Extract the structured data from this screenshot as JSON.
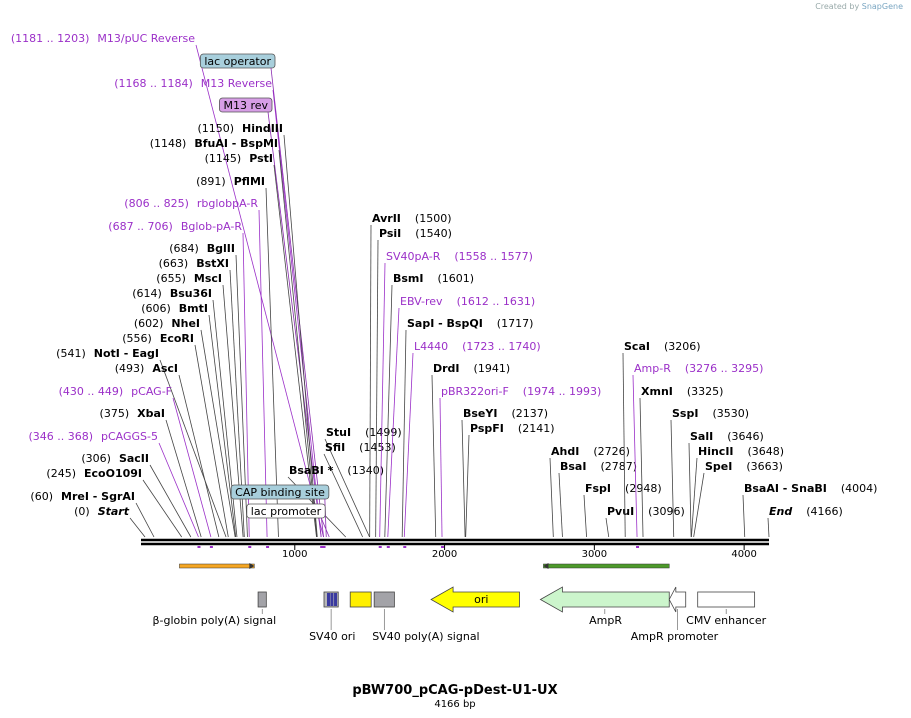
{
  "credit": {
    "prefix": "Created by",
    "brand": "SnapGene"
  },
  "map": {
    "title": "pBW700_pCAG-pDest-U1-UX",
    "subtitle": "4166 bp",
    "total_bp": 4166,
    "ticks": [
      1000,
      2000,
      3000,
      4000
    ]
  },
  "colors": {
    "primer": "#9b30c8",
    "site": "#000000",
    "pos": "#000000"
  },
  "labels": [
    {
      "text": "M13/pUC Reverse",
      "range": "(1181 .. 1203)",
      "kind": "primer",
      "bp": 1192
    },
    {
      "text": "lac operator",
      "kind": "box",
      "fill": "#a8cfdc",
      "bp": 1192
    },
    {
      "text": "M13 Reverse",
      "range": "(1168 .. 1184)",
      "kind": "primer",
      "bp": 1176
    },
    {
      "text": "M13 rev",
      "kind": "box",
      "fill": "#d79ee6",
      "bp": 1176
    },
    {
      "text": "HindIII",
      "pos": "(1150)",
      "kind": "site",
      "bp": 1150
    },
    {
      "text": "BfuAI  -  BspMI",
      "pos": "(1148)",
      "kind": "site",
      "bp": 1148
    },
    {
      "text": "PstI",
      "pos": "(1145)",
      "kind": "site",
      "bp": 1145
    },
    {
      "text": "PflMI",
      "pos": "(891)",
      "kind": "site",
      "bp": 891
    },
    {
      "text": "rbglobpA-R",
      "range": "(806 .. 825)",
      "kind": "primer",
      "bp": 815
    },
    {
      "text": "Bglob-pA-R",
      "range": "(687 .. 706)",
      "kind": "primer",
      "bp": 696
    },
    {
      "text": "BglII",
      "pos": "(684)",
      "kind": "site",
      "bp": 684
    },
    {
      "text": "BstXI",
      "pos": "(663)",
      "kind": "site",
      "bp": 663
    },
    {
      "text": "MscI",
      "pos": "(655)",
      "kind": "site",
      "bp": 655
    },
    {
      "text": "Bsu36I",
      "pos": "(614)",
      "kind": "site",
      "bp": 614
    },
    {
      "text": "BmtI",
      "pos": "(606)",
      "kind": "site",
      "bp": 606
    },
    {
      "text": "NheI",
      "pos": "(602)",
      "kind": "site",
      "bp": 602
    },
    {
      "text": "EcoRI",
      "pos": "(556)",
      "kind": "site",
      "bp": 556
    },
    {
      "text": "NotI  -  EagI",
      "pos": "(541)",
      "kind": "site",
      "bp": 541
    },
    {
      "text": "AscI",
      "pos": "(493)",
      "kind": "site",
      "bp": 493
    },
    {
      "text": "pCAG-F",
      "range": "(430 .. 449)",
      "kind": "primer",
      "bp": 440
    },
    {
      "text": "XbaI",
      "pos": "(375)",
      "kind": "site",
      "bp": 375
    },
    {
      "text": "pCAGGS-5",
      "range": "(346 .. 368)",
      "kind": "primer",
      "bp": 357
    },
    {
      "text": "SacII",
      "pos": "(306)",
      "kind": "site",
      "bp": 306
    },
    {
      "text": "EcoO109I",
      "pos": "(245)",
      "kind": "site",
      "bp": 245
    },
    {
      "text": "MreI  -  SgrAI",
      "pos": "(60)",
      "kind": "site",
      "bp": 60
    },
    {
      "text": "Start",
      "pos": "(0)",
      "kind": "site",
      "italic": true,
      "bp": 0
    },
    {
      "text": "StuI",
      "pos": "(1499)",
      "kind": "site",
      "bp": 1499
    },
    {
      "text": "SfiI",
      "pos": "(1453)",
      "kind": "site",
      "bp": 1453
    },
    {
      "text": "BsaBI *",
      "pos": "(1340)",
      "kind": "site",
      "bp": 1340
    },
    {
      "text": "CAP binding site",
      "kind": "box",
      "fill": "#a8cfdc",
      "bp": 1210
    },
    {
      "text": "lac promoter",
      "kind": "box",
      "fill": "#ffffff",
      "bp": 1230
    },
    {
      "text": "AvrII",
      "pos": "(1500)",
      "kind": "site",
      "bp": 1500
    },
    {
      "text": "PsiI",
      "pos": "(1540)",
      "kind": "site",
      "bp": 1540
    },
    {
      "text": "SV40pA-R",
      "range": "(1558 .. 1577)",
      "kind": "primer",
      "bp": 1567
    },
    {
      "text": "BsmI",
      "pos": "(1601)",
      "kind": "site",
      "bp": 1601
    },
    {
      "text": "EBV-rev",
      "range": "(1612 .. 1631)",
      "kind": "primer",
      "bp": 1621
    },
    {
      "text": "SapI  -  BspQI",
      "pos": "(1717)",
      "kind": "site",
      "bp": 1717
    },
    {
      "text": "L4440",
      "range": "(1723 .. 1740)",
      "kind": "primer",
      "bp": 1731
    },
    {
      "text": "DrdI",
      "pos": "(1941)",
      "kind": "site",
      "bp": 1941
    },
    {
      "text": "pBR322ori-F",
      "range": "(1974 .. 1993)",
      "kind": "primer",
      "bp": 1983
    },
    {
      "text": "BseYI",
      "pos": "(2137)",
      "kind": "site",
      "bp": 2137
    },
    {
      "text": "PspFI",
      "pos": "(2141)",
      "kind": "site",
      "bp": 2141
    },
    {
      "text": "AhdI",
      "pos": "(2726)",
      "kind": "site",
      "bp": 2726
    },
    {
      "text": "BsaI",
      "pos": "(2787)",
      "kind": "site",
      "bp": 2787
    },
    {
      "text": "FspI",
      "pos": "(2948)",
      "kind": "site",
      "bp": 2948
    },
    {
      "text": "PvuI",
      "pos": "(3096)",
      "kind": "site",
      "bp": 3096
    },
    {
      "text": "ScaI",
      "pos": "(3206)",
      "kind": "site",
      "bp": 3206
    },
    {
      "text": "Amp-R",
      "range": "(3276 .. 3295)",
      "kind": "primer",
      "bp": 3285
    },
    {
      "text": "XmnI",
      "pos": "(3325)",
      "kind": "site",
      "bp": 3325
    },
    {
      "text": "SspI",
      "pos": "(3530)",
      "kind": "site",
      "bp": 3530
    },
    {
      "text": "SalI",
      "pos": "(3646)",
      "kind": "site",
      "bp": 3646
    },
    {
      "text": "HincII",
      "pos": "(3648)",
      "kind": "site",
      "bp": 3648
    },
    {
      "text": "SpeI",
      "pos": "(3663)",
      "kind": "site",
      "bp": 3663
    },
    {
      "text": "BsaAI  -  SnaBI",
      "pos": "(4004)",
      "kind": "site",
      "bp": 4004
    },
    {
      "text": "End",
      "pos": "(4166)",
      "kind": "site",
      "italic": true,
      "bp": 4166
    }
  ],
  "features": [
    {
      "name": "β-globin poly(A) signal",
      "start": 755,
      "end": 810,
      "type": "box",
      "fill": "#a3a3a8"
    },
    {
      "name": "SV40 ori",
      "start": 1195,
      "end": 1290,
      "type": "box",
      "fill": "#b8b8b8"
    },
    {
      "name": "",
      "start": 1370,
      "end": 1510,
      "type": "box",
      "fill": "#ffef00"
    },
    {
      "name": "SV40 poly(A) signal",
      "start": 1530,
      "end": 1665,
      "type": "box",
      "fill": "#a3a3a8"
    },
    {
      "name": "ori",
      "start": 1910,
      "end": 2500,
      "type": "arrow-left",
      "fill": "#ffff00",
      "label": "ori"
    },
    {
      "name": "AmpR",
      "start": 2640,
      "end": 3500,
      "type": "arrow-left",
      "fill": "#ccf5cc"
    },
    {
      "name": "AmpR promoter",
      "start": 3500,
      "end": 3610,
      "type": "arrow-left",
      "fill": "#ffffff"
    },
    {
      "name": "CMV enhancer",
      "start": 3690,
      "end": 4070,
      "type": "box",
      "fill": "#ffffff"
    }
  ],
  "orfs": [
    {
      "start": 230,
      "end": 730,
      "dir": "right",
      "color": "#f5a623"
    },
    {
      "start": 2660,
      "end": 3500,
      "dir": "left",
      "color": "#4d9a2a"
    }
  ]
}
